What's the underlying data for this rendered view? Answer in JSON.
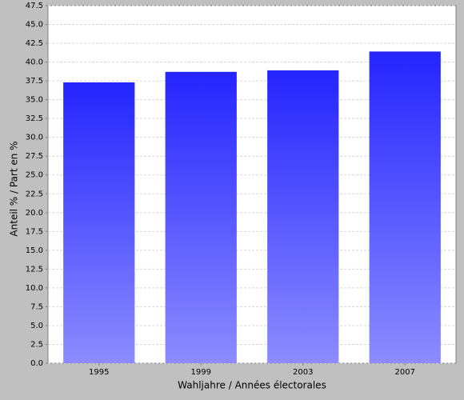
{
  "chart_data": {
    "type": "bar",
    "x_label": "Wahljahre / Années électorales",
    "y_label": "Anteil % / Part en %",
    "categories": [
      "1995",
      "1999",
      "2003",
      "2007"
    ],
    "values": [
      37.3,
      38.7,
      38.9,
      41.4
    ],
    "color": "#2424ff",
    "color_bottom": "#8c8cff",
    "ylim": [
      0,
      47.5
    ],
    "yticks": [
      {
        "value": 0,
        "label": "0.0"
      },
      2.5,
      {
        "value": 5,
        "label": "5.0"
      },
      7.5,
      {
        "value": 10,
        "label": "10.0"
      },
      12.5,
      {
        "value": 15,
        "label": "15.0"
      },
      17.5,
      {
        "value": 20,
        "label": "20.0"
      },
      22.5,
      {
        "value": 25,
        "label": "25.0"
      },
      27.5,
      {
        "value": 30,
        "label": "30.0"
      },
      32.5,
      {
        "value": 35,
        "label": "35.0"
      },
      37.5,
      {
        "value": 40,
        "label": "40.0"
      },
      42.5,
      {
        "value": 45,
        "label": "45.0"
      },
      47.5
    ],
    "grid": true
  }
}
